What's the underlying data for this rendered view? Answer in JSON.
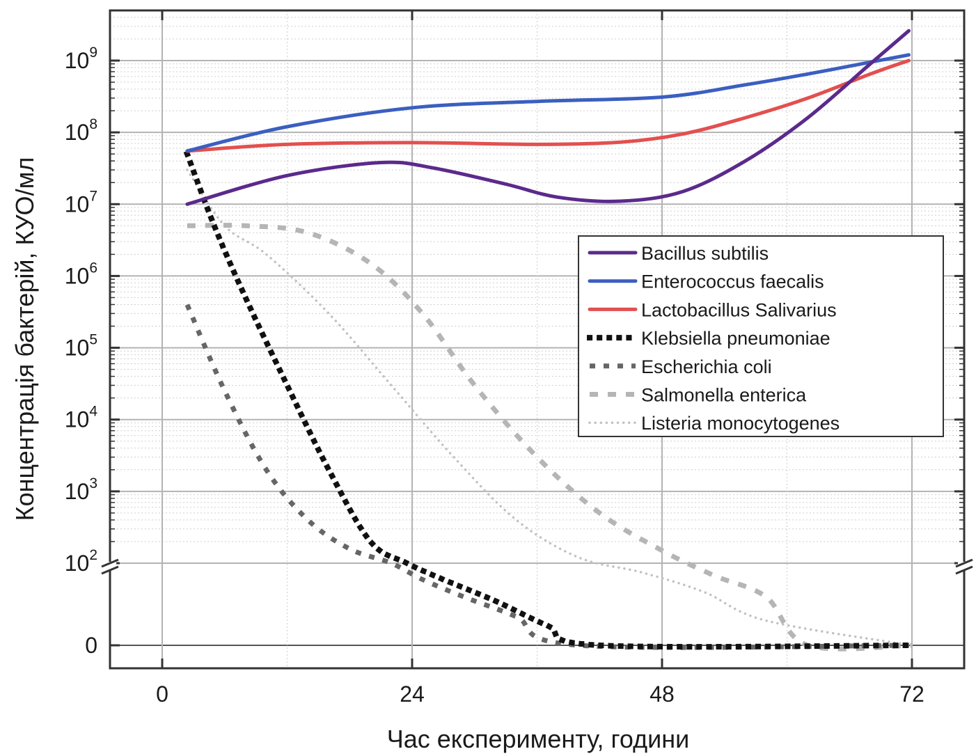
{
  "chart_data": {
    "type": "line",
    "title": "",
    "xlabel": "Час експерименту, години",
    "ylabel": "Концентрація бактерій, КУО/мл",
    "xlim": [
      -10,
      77
    ],
    "x_ticks": [
      0,
      24,
      48,
      72
    ],
    "x_tick_labels": [
      "0",
      "24",
      "48",
      "72"
    ],
    "y_scale": "log-with-broken-axis-to-zero",
    "ylim_log": [
      2,
      9.7
    ],
    "y_ticks": [
      {
        "base": "10",
        "exp": "9",
        "log": 9
      },
      {
        "base": "10",
        "exp": "8",
        "log": 8
      },
      {
        "base": "10",
        "exp": "7",
        "log": 7
      },
      {
        "base": "10",
        "exp": "6",
        "log": 6
      },
      {
        "base": "10",
        "exp": "5",
        "log": 5
      },
      {
        "base": "10",
        "exp": "4",
        "log": 4
      },
      {
        "base": "10",
        "exp": "3",
        "log": 3
      },
      {
        "base": "10",
        "exp": "2",
        "log": 2
      },
      {
        "base": "0",
        "exp": "",
        "log": null
      }
    ],
    "grid": true,
    "legend_position": "center-right",
    "series": [
      {
        "name": "Bacillus subtilis",
        "color": "#5b2a8c",
        "style": "solid",
        "x": [
          2.4,
          12,
          21,
          26,
          33,
          38,
          44,
          50,
          56,
          62,
          68,
          71.7
        ],
        "y": [
          10000000.0,
          25000000.0,
          38000000.0,
          32000000.0,
          19000000.0,
          12500000.0,
          11000000.0,
          15000000.0,
          40000000.0,
          160000000.0,
          900000000.0,
          2600000000.0
        ]
      },
      {
        "name": "Enterococcus faecalis",
        "color": "#3b5fc0",
        "style": "solid",
        "x": [
          2.4,
          12,
          24,
          36,
          48,
          56,
          62,
          68,
          71.7
        ],
        "y": [
          55000000.0,
          120000000.0,
          220000000.0,
          270000000.0,
          310000000.0,
          460000000.0,
          650000000.0,
          950000000.0,
          1200000000.0
        ]
      },
      {
        "name": "Lactobacillus Salivarius",
        "color": "#e2504f",
        "style": "solid",
        "x": [
          2.4,
          12,
          24,
          36,
          44,
          50,
          56,
          62,
          68,
          71.7
        ],
        "y": [
          55000000.0,
          68000000.0,
          72000000.0,
          68000000.0,
          73000000.0,
          95000000.0,
          160000000.0,
          300000000.0,
          650000000.0,
          1000000000.0
        ]
      },
      {
        "name": "Klebsiella pneumoniae",
        "color": "#111111",
        "style": "dot-heavy",
        "x": [
          2.4,
          5,
          8,
          12,
          16,
          20,
          23.5,
          27,
          32,
          37,
          42,
          72
        ],
        "y": [
          50000000.0,
          5000000.0,
          500000.0,
          30000.0,
          2000.0,
          200.0,
          100.0,
          40,
          12,
          3,
          0,
          0
        ]
      },
      {
        "name": "Escherichia coli",
        "color": "#666666",
        "style": "dash-short",
        "x": [
          2.4,
          6,
          10,
          14,
          18,
          22,
          25,
          29,
          34,
          40,
          72
        ],
        "y": [
          400000.0,
          30000.0,
          3000.0,
          500.0,
          150.0,
          80,
          40,
          15,
          5,
          0,
          0
        ],
        "y_log_override": [
          5.6,
          4.4,
          3.3,
          2.6,
          2.2,
          2.0,
          null,
          null,
          null,
          null,
          null
        ]
      },
      {
        "name": "Salmonella enterica",
        "color": "#b5b5b5",
        "style": "dash-long",
        "x": [
          2.4,
          8,
          14,
          20,
          25,
          30,
          36,
          42,
          48,
          53,
          58,
          62,
          72
        ],
        "y": [
          5000000.0,
          5000000.0,
          4000000.0,
          1500000.0,
          300000.0,
          30000.0,
          3000.0,
          500.0,
          150.0,
          50,
          15,
          0,
          0
        ]
      },
      {
        "name": "Listeria monocytogenes",
        "color": "#c2c2c2",
        "style": "dot-fine",
        "x": [
          2.4,
          6,
          10,
          16,
          22,
          28,
          34,
          40,
          46,
          52,
          58,
          72
        ],
        "y": [
          30000000.0,
          5000000.0,
          2000000.0,
          300000.0,
          30000.0,
          3000.0,
          400.0,
          120.0,
          60,
          20,
          4,
          0
        ]
      }
    ]
  }
}
